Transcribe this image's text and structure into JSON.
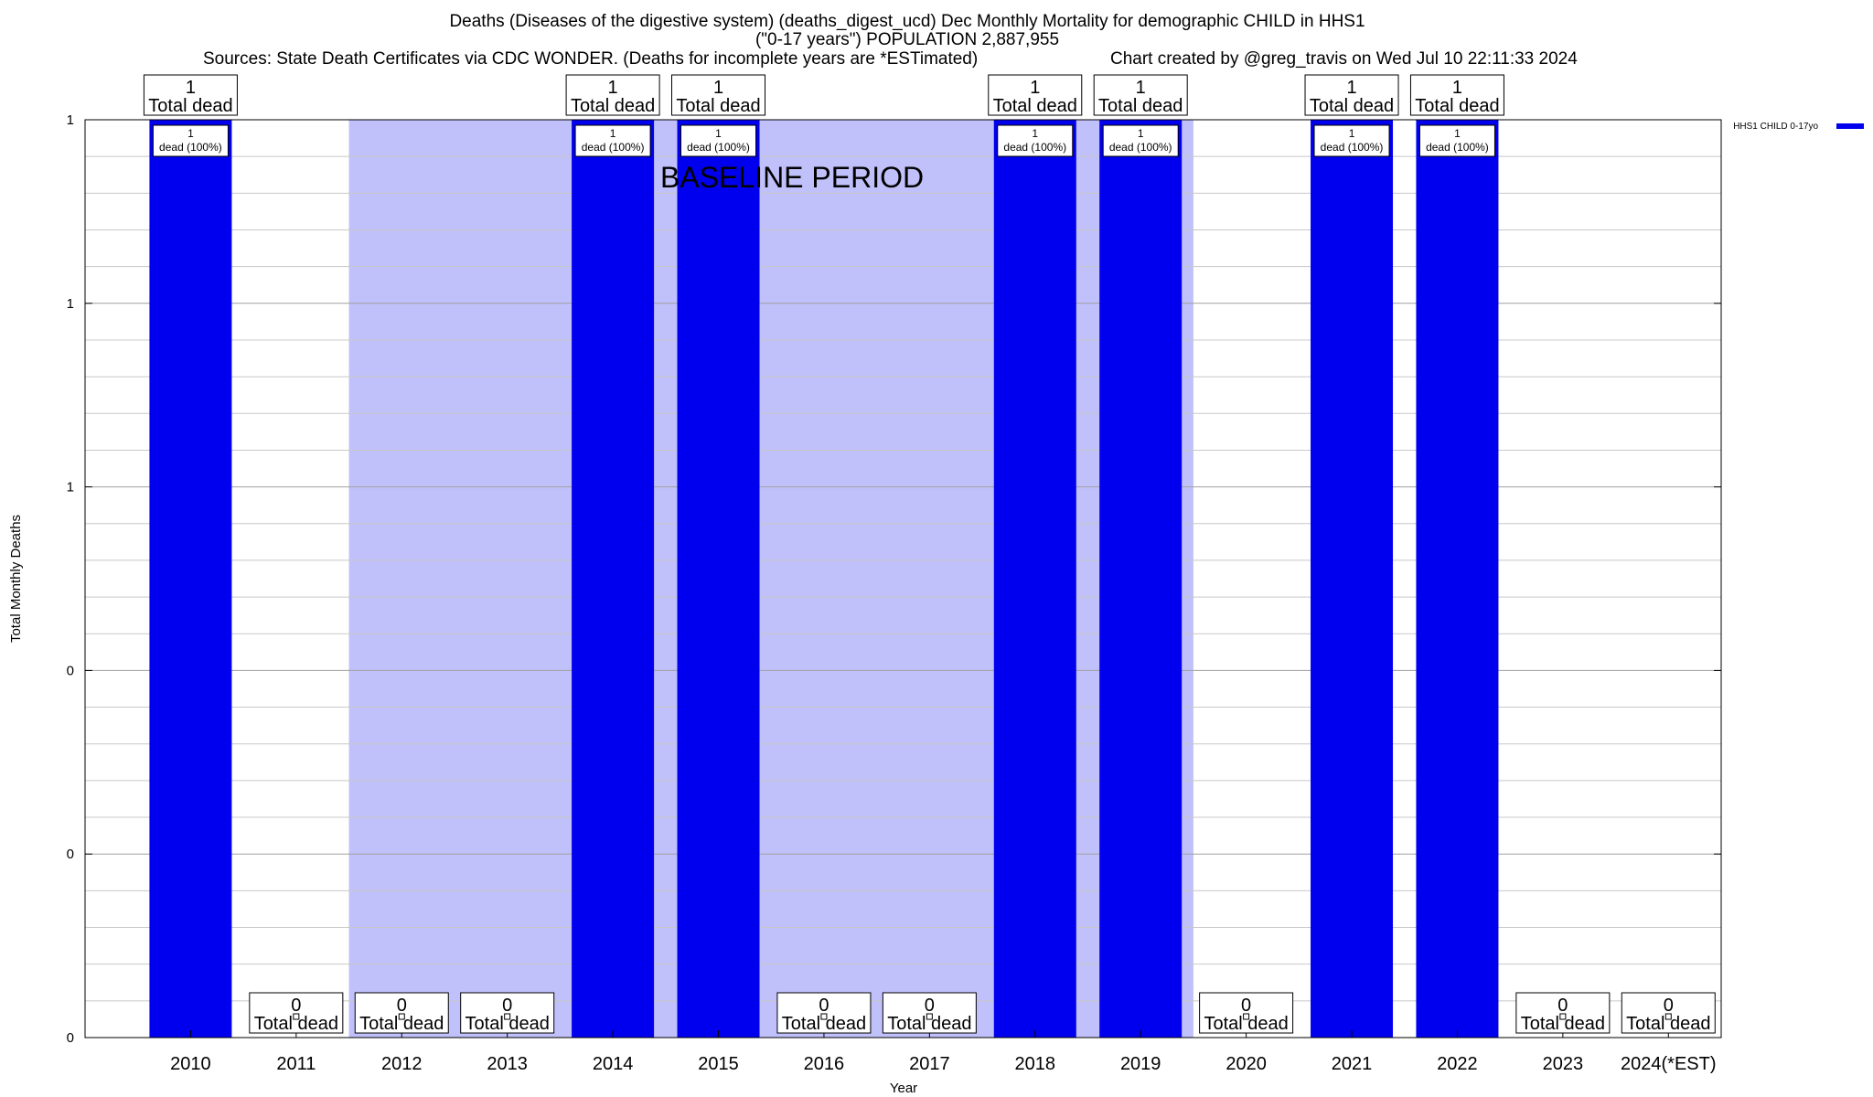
{
  "header": {
    "title_line1": "Deaths (Diseases of the digestive system) (deaths_digest_ucd) Dec Monthly Mortality for demographic CHILD in HHS1",
    "title_line2": "(\"0-17 years\") POPULATION 2,887,955",
    "sources": "Sources: State Death Certificates via CDC WONDER. (Deaths for incomplete years are *ESTimated)",
    "credit": "Chart created by @greg_travis on Wed Jul 10 22:11:33 2024"
  },
  "chart_data": {
    "type": "bar",
    "categories": [
      "2010",
      "2011",
      "2012",
      "2013",
      "2014",
      "2015",
      "2016",
      "2017",
      "2018",
      "2019",
      "2020",
      "2021",
      "2022",
      "2023",
      "2024(*EST)"
    ],
    "series": [
      {
        "name": "HHS1 CHILD 0-17yo",
        "values": [
          1,
          0,
          0,
          0,
          1,
          1,
          0,
          0,
          1,
          1,
          0,
          1,
          1,
          0,
          0
        ],
        "color": "#0000ee"
      }
    ],
    "xlabel": "Year",
    "ylabel": "Total Monthly Deaths",
    "ylim": [
      0,
      1
    ],
    "ytick_values": [
      0,
      0.2,
      0.4,
      0.6,
      0.8,
      1.0
    ],
    "ytick_labels": [
      "0",
      "0",
      "0",
      "1",
      "1",
      "1"
    ],
    "total_label_suffix": "Total dead",
    "bar_label_template": "dead (100%)",
    "baseline_period": {
      "label": "BASELINE PERIOD",
      "from": "2012",
      "to": "2019",
      "color": "#c0c0fa"
    },
    "grid": true,
    "legend_position": "top-right"
  }
}
